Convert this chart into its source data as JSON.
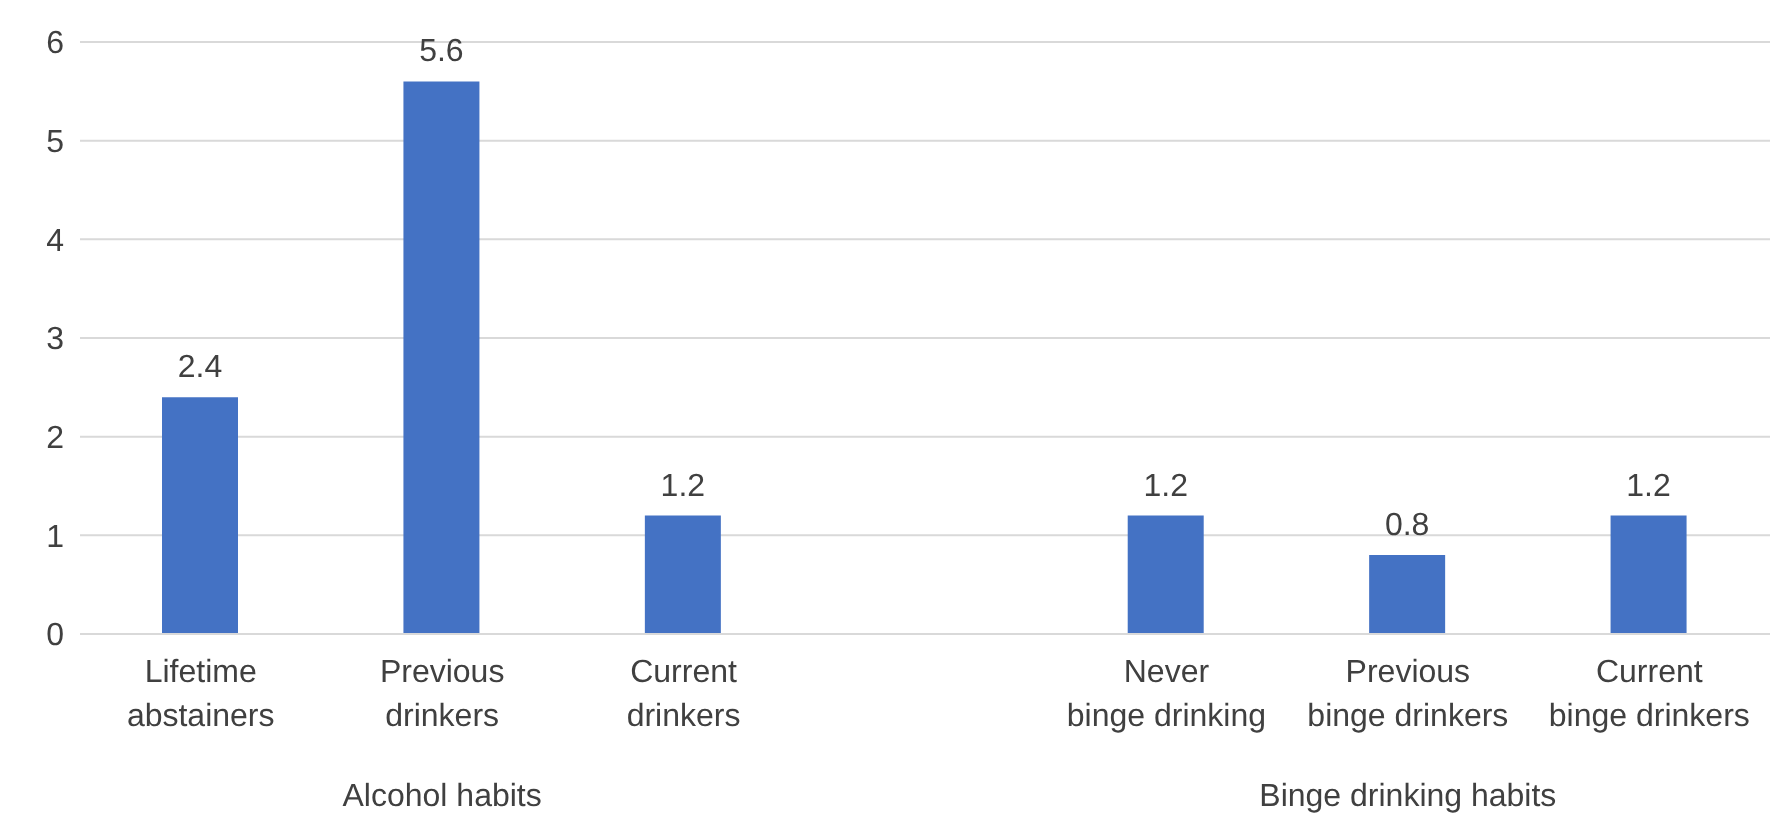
{
  "chart_data": {
    "type": "bar",
    "categories": [
      "Lifetime abstainers",
      "Previous drinkers",
      "Current drinkers",
      null,
      "Never binge drinking",
      "Previous binge drinkers",
      "Current binge drinkers"
    ],
    "values": [
      2.4,
      5.6,
      1.2,
      null,
      1.2,
      0.8,
      1.2
    ],
    "color": "#4472c4",
    "ylim": [
      0,
      6
    ],
    "yticks": [
      0,
      1,
      2,
      3,
      4,
      5,
      6
    ],
    "grid": "y",
    "data_labels": true,
    "annotations": [
      "Alcohol habits",
      "Binge drinking habits"
    ]
  }
}
